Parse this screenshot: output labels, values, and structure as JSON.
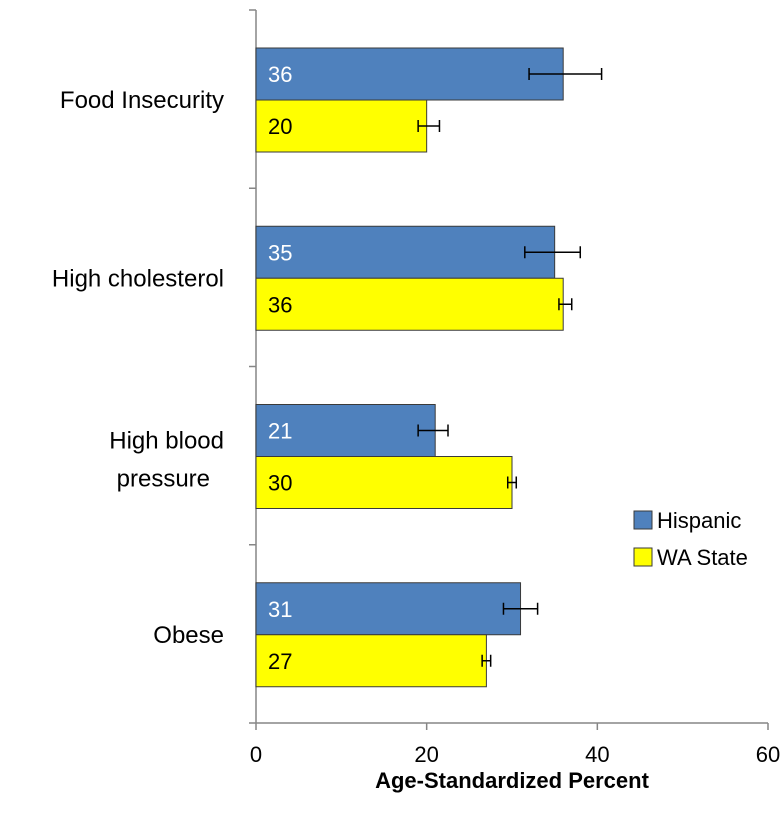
{
  "chart_data": {
    "type": "bar",
    "orientation": "horizontal",
    "categories": [
      "Food Insecurity",
      "High cholesterol",
      "High blood pressure",
      "Obese"
    ],
    "series": [
      {
        "name": "Hispanic",
        "color": "#4f81bd",
        "label_color": "#ffffff",
        "values": [
          36,
          35,
          21,
          31
        ],
        "error_low": [
          32,
          31.5,
          19,
          29
        ],
        "error_high": [
          40.5,
          38,
          22.5,
          33
        ]
      },
      {
        "name": "WA State",
        "color": "#ffff00",
        "label_color": "#000000",
        "values": [
          20,
          36,
          30,
          27
        ],
        "error_low": [
          19,
          35.5,
          29.5,
          26.5
        ],
        "error_high": [
          21.5,
          37,
          30.5,
          27.5
        ]
      }
    ],
    "xlabel": "Age-Standardized Percent",
    "ylabel": "",
    "xlim": [
      0,
      60
    ],
    "xticks": [
      "0",
      "20",
      "40",
      "60"
    ],
    "grid": false,
    "legend": "right"
  }
}
